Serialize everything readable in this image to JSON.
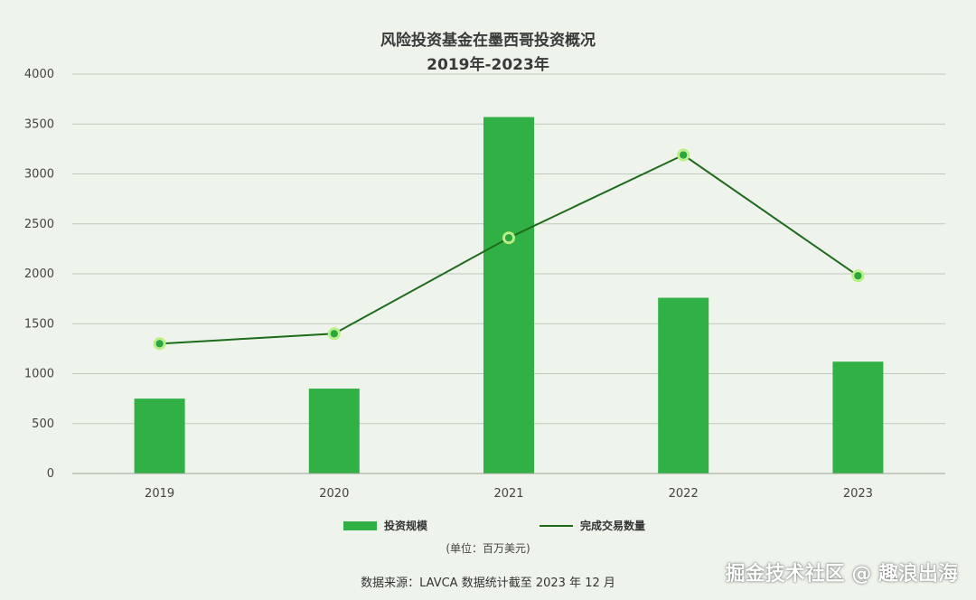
{
  "chart_data": {
    "type": "bar",
    "title": "风险投资基金在墨西哥投资概况",
    "subtitle": "2019年-2023年",
    "categories": [
      "2019",
      "2020",
      "2021",
      "2022",
      "2023"
    ],
    "series": [
      {
        "name": "投资规模",
        "kind": "bar",
        "color": "#31b045",
        "values": [
          750,
          850,
          3570,
          1760,
          1120
        ]
      },
      {
        "name": "完成交易数量",
        "kind": "line",
        "color": "#1e6b1c",
        "values": [
          1300,
          1400,
          2360,
          3190,
          1980
        ]
      }
    ],
    "y_ticks": [
      "0",
      "500",
      "1000",
      "1500",
      "2000",
      "2500",
      "3000",
      "3500",
      "4000"
    ],
    "ylim": [
      0,
      4000
    ],
    "grid": true,
    "legend_position": "bottom",
    "unit_note": "(单位：百万美元)",
    "source_note": "数据来源：LAVCA 数据统计截至 2023 年 12 月",
    "watermark": "掘金技术社区 @ 趣浪出海",
    "point_fill": "#2aa83a",
    "point_ring": "#b7f07a"
  }
}
